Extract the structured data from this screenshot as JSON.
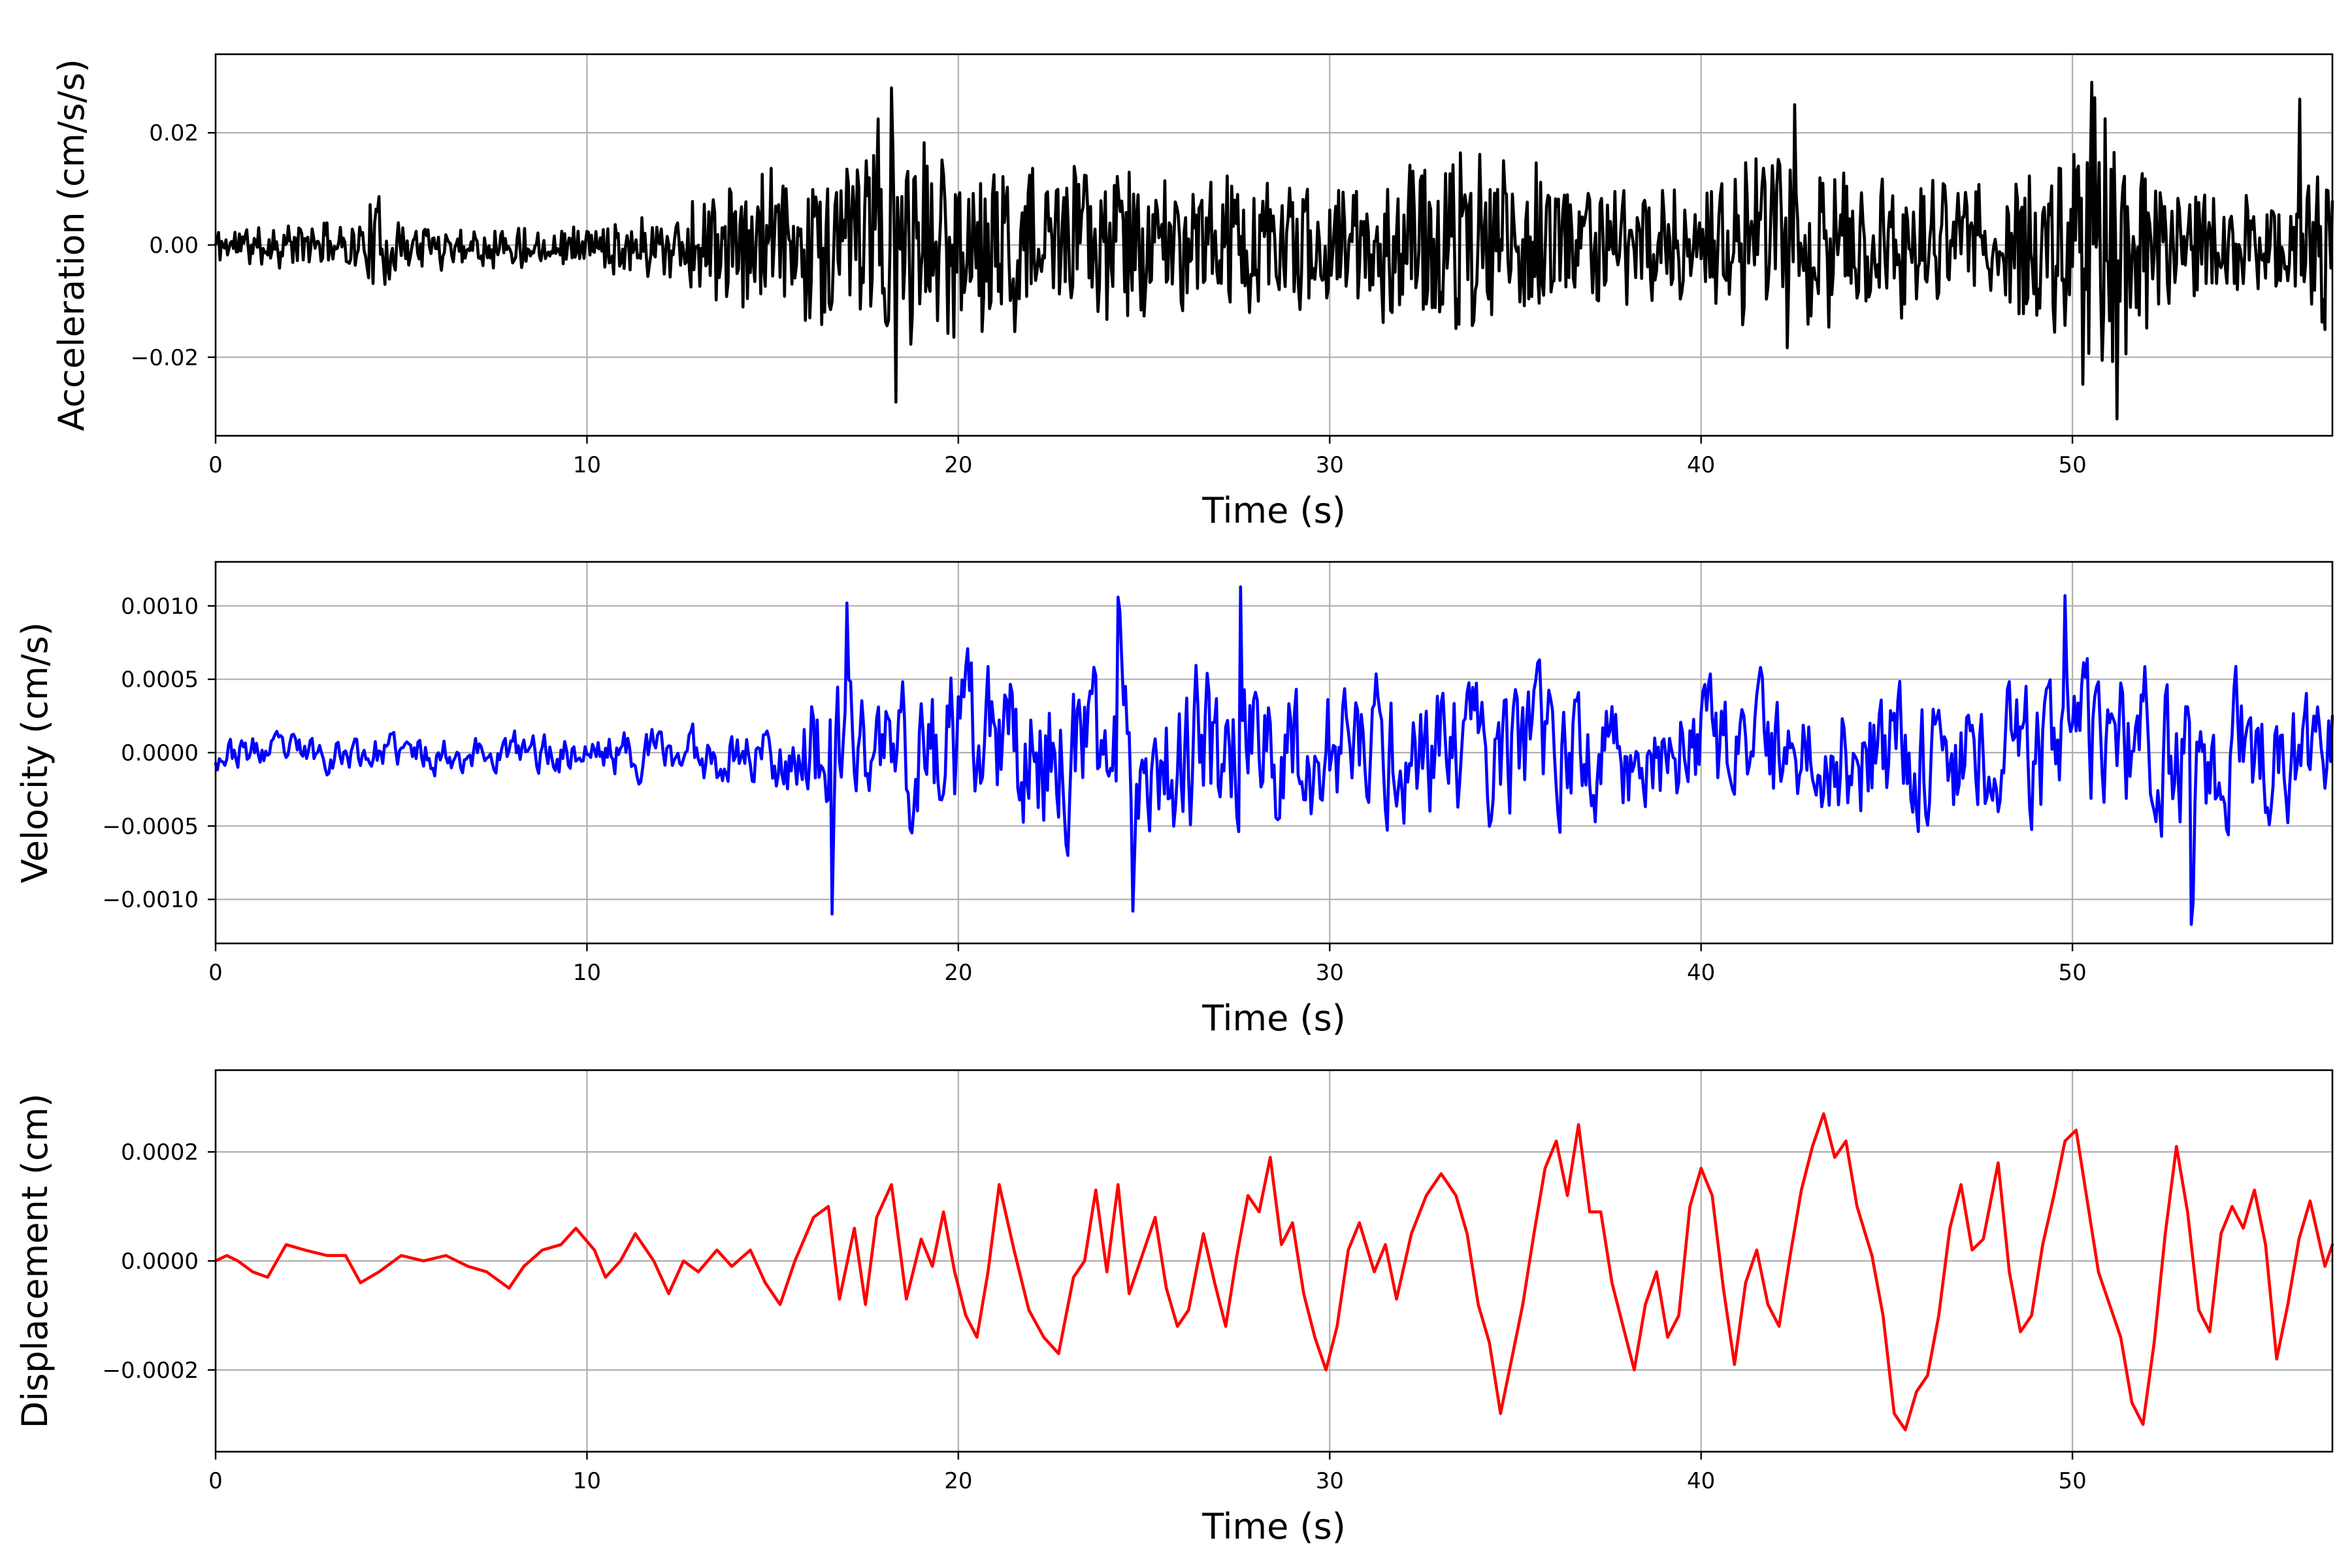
{
  "chart_data": [
    {
      "type": "line",
      "xlabel": "Time (s)",
      "ylabel": "Acceleration (cm/s/s)",
      "xlim": [
        0,
        57
      ],
      "ylim": [
        -0.034,
        0.034
      ],
      "xticks": [
        0,
        10,
        20,
        30,
        40,
        50
      ],
      "xtick_labels": [
        "0",
        "10",
        "20",
        "30",
        "40",
        "50"
      ],
      "yticks": [
        0.02,
        0.0,
        -0.02
      ],
      "ytick_labels": [
        "0.02",
        "0.00",
        "−0.02"
      ],
      "grid": true,
      "color": "#000000",
      "envelope": {
        "t": [
          0,
          4,
          4.3,
          5,
          10,
          12,
          15,
          17,
          18.2,
          20,
          23,
          26,
          30,
          33.8,
          36,
          40,
          41,
          42.5,
          44,
          48,
          49.5,
          50.5,
          51,
          52,
          54,
          56,
          57
        ],
        "amp": [
          0.004,
          0.005,
          0.011,
          0.005,
          0.004,
          0.008,
          0.015,
          0.018,
          0.028,
          0.018,
          0.016,
          0.014,
          0.012,
          0.02,
          0.014,
          0.01,
          0.016,
          0.024,
          0.016,
          0.012,
          0.02,
          0.03,
          0.03,
          0.016,
          0.01,
          0.012,
          0.02
        ]
      },
      "notable_peaks": [
        {
          "t": 18.2,
          "y": 0.028
        },
        {
          "t": 18.3,
          "y": -0.028
        },
        {
          "t": 42.5,
          "y": 0.025
        },
        {
          "t": 50.5,
          "y": 0.029
        },
        {
          "t": 51.2,
          "y": -0.031
        },
        {
          "t": 56.1,
          "y": 0.026
        }
      ]
    },
    {
      "type": "line",
      "xlabel": "Time (s)",
      "ylabel": "Velocity (cm/s)",
      "xlim": [
        0,
        57
      ],
      "ylim": [
        -0.0013,
        0.0013
      ],
      "xticks": [
        0,
        10,
        20,
        30,
        40,
        50
      ],
      "xtick_labels": [
        "0",
        "10",
        "20",
        "30",
        "40",
        "50"
      ],
      "yticks": [
        0.001,
        0.0005,
        0.0,
        -0.0005,
        -0.001
      ],
      "ytick_labels": [
        "0.0010",
        "0.0005",
        "0.0000",
        "−0.0005",
        "−0.0010"
      ],
      "grid": true,
      "color": "#0000ff",
      "envelope": {
        "t": [
          0,
          5,
          10,
          12,
          15,
          16.5,
          18,
          20,
          24,
          27.5,
          30,
          34,
          36,
          40,
          44,
          48,
          50,
          52,
          53,
          57
        ],
        "amp": [
          0.0002,
          0.00022,
          0.00025,
          0.0003,
          0.0004,
          0.0009,
          0.0009,
          0.00095,
          0.0009,
          0.001,
          0.0008,
          0.0008,
          0.0008,
          0.0007,
          0.0008,
          0.0008,
          0.0009,
          0.0009,
          0.0009,
          0.0007
        ]
      },
      "notable_peaks": [
        {
          "t": 16.6,
          "y": -0.0011
        },
        {
          "t": 17.0,
          "y": 0.00102
        },
        {
          "t": 24.3,
          "y": 0.00106
        },
        {
          "t": 24.7,
          "y": -0.00108
        },
        {
          "t": 27.6,
          "y": 0.00113
        },
        {
          "t": 49.8,
          "y": 0.00107
        },
        {
          "t": 53.2,
          "y": -0.00117
        }
      ]
    },
    {
      "type": "line",
      "xlabel": "Time (s)",
      "ylabel": "Displacement (cm)",
      "xlim": [
        0,
        57
      ],
      "ylim": [
        -0.00035,
        0.00035
      ],
      "xticks": [
        0,
        10,
        20,
        30,
        40,
        50
      ],
      "xtick_labels": [
        "0",
        "10",
        "20",
        "30",
        "40",
        "50"
      ],
      "yticks": [
        0.0002,
        0.0,
        -0.0002
      ],
      "ytick_labels": [
        "0.0002",
        "0.0000",
        "−0.0002"
      ],
      "grid": true,
      "color": "#ff0000",
      "points": [
        [
          0,
          0.0
        ],
        [
          0.3,
          1e-05
        ],
        [
          0.6,
          0.0
        ],
        [
          1.0,
          -2e-05
        ],
        [
          1.4,
          -3e-05
        ],
        [
          1.9,
          3e-05
        ],
        [
          2.4,
          2e-05
        ],
        [
          3.0,
          1e-05
        ],
        [
          3.5,
          1e-05
        ],
        [
          3.9,
          -4e-05
        ],
        [
          4.4,
          -2e-05
        ],
        [
          5.0,
          1e-05
        ],
        [
          5.6,
          0.0
        ],
        [
          6.2,
          1e-05
        ],
        [
          6.8,
          -1e-05
        ],
        [
          7.3,
          -2e-05
        ],
        [
          7.9,
          -5e-05
        ],
        [
          8.3,
          -1e-05
        ],
        [
          8.8,
          2e-05
        ],
        [
          9.3,
          3e-05
        ],
        [
          9.7,
          6e-05
        ],
        [
          10.2,
          2e-05
        ],
        [
          10.5,
          -3e-05
        ],
        [
          10.9,
          0.0
        ],
        [
          11.3,
          5e-05
        ],
        [
          11.8,
          0.0
        ],
        [
          12.2,
          -6e-05
        ],
        [
          12.6,
          0.0
        ],
        [
          13.0,
          -2e-05
        ],
        [
          13.5,
          2e-05
        ],
        [
          13.9,
          -1e-05
        ],
        [
          14.4,
          2e-05
        ],
        [
          14.8,
          -4e-05
        ],
        [
          15.2,
          -8e-05
        ],
        [
          15.6,
          0.0
        ],
        [
          16.1,
          8e-05
        ],
        [
          16.5,
          0.0001
        ],
        [
          16.8,
          -7e-05
        ],
        [
          17.2,
          6e-05
        ],
        [
          17.5,
          -8e-05
        ],
        [
          17.8,
          8e-05
        ],
        [
          18.2,
          0.00014
        ],
        [
          18.6,
          -7e-05
        ],
        [
          19.0,
          4e-05
        ],
        [
          19.3,
          -1e-05
        ],
        [
          19.6,
          9e-05
        ],
        [
          19.9,
          -2e-05
        ],
        [
          20.2,
          -0.0001
        ],
        [
          20.5,
          -0.00014
        ],
        [
          20.8,
          -2e-05
        ],
        [
          21.1,
          0.00014
        ],
        [
          21.5,
          2e-05
        ],
        [
          21.9,
          -9e-05
        ],
        [
          22.3,
          -0.00014
        ],
        [
          22.7,
          -0.00017
        ],
        [
          23.1,
          -3e-05
        ],
        [
          23.4,
          0.0
        ],
        [
          23.7,
          0.00013
        ],
        [
          24.0,
          -2e-05
        ],
        [
          24.3,
          0.00014
        ],
        [
          24.6,
          -6e-05
        ],
        [
          24.9,
          0.0
        ],
        [
          25.3,
          8e-05
        ],
        [
          25.6,
          -5e-05
        ],
        [
          25.9,
          -0.00012
        ],
        [
          26.2,
          -9e-05
        ],
        [
          26.6,
          5e-05
        ],
        [
          26.9,
          -4e-05
        ],
        [
          27.2,
          -0.00012
        ],
        [
          27.5,
          1e-05
        ],
        [
          27.8,
          0.00012
        ],
        [
          28.1,
          9e-05
        ],
        [
          28.4,
          0.00019
        ],
        [
          28.7,
          3e-05
        ],
        [
          29.0,
          7e-05
        ],
        [
          29.3,
          -6e-05
        ],
        [
          29.6,
          -0.00014
        ],
        [
          29.9,
          -0.0002
        ],
        [
          30.2,
          -0.00012
        ],
        [
          30.5,
          2e-05
        ],
        [
          30.8,
          7e-05
        ],
        [
          31.2,
          -2e-05
        ],
        [
          31.5,
          3e-05
        ],
        [
          31.8,
          -7e-05
        ],
        [
          32.2,
          5e-05
        ],
        [
          32.6,
          0.00012
        ],
        [
          33.0,
          0.00016
        ],
        [
          33.4,
          0.00012
        ],
        [
          33.7,
          5e-05
        ],
        [
          34.0,
          -8e-05
        ],
        [
          34.3,
          -0.00015
        ],
        [
          34.6,
          -0.00028
        ],
        [
          34.9,
          -0.00018
        ],
        [
          35.2,
          -8e-05
        ],
        [
          35.5,
          5e-05
        ],
        [
          35.8,
          0.00017
        ],
        [
          36.1,
          0.00022
        ],
        [
          36.4,
          0.00012
        ],
        [
          36.7,
          0.00025
        ],
        [
          37.0,
          9e-05
        ],
        [
          37.3,
          9e-05
        ],
        [
          37.6,
          -4e-05
        ],
        [
          37.9,
          -0.00012
        ],
        [
          38.2,
          -0.0002
        ],
        [
          38.5,
          -8e-05
        ],
        [
          38.8,
          -2e-05
        ],
        [
          39.1,
          -0.00014
        ],
        [
          39.4,
          -0.0001
        ],
        [
          39.7,
          0.0001
        ],
        [
          40.0,
          0.00017
        ],
        [
          40.3,
          0.00012
        ],
        [
          40.6,
          -5e-05
        ],
        [
          40.9,
          -0.00019
        ],
        [
          41.2,
          -4e-05
        ],
        [
          41.5,
          2e-05
        ],
        [
          41.8,
          -8e-05
        ],
        [
          42.1,
          -0.00012
        ],
        [
          42.4,
          1e-05
        ],
        [
          42.7,
          0.00013
        ],
        [
          43.0,
          0.00021
        ],
        [
          43.3,
          0.00027
        ],
        [
          43.6,
          0.00019
        ],
        [
          43.9,
          0.00022
        ],
        [
          44.2,
          0.0001
        ],
        [
          44.6,
          1e-05
        ],
        [
          44.9,
          -0.0001
        ],
        [
          45.2,
          -0.00028
        ],
        [
          45.5,
          -0.00031
        ],
        [
          45.8,
          -0.00024
        ],
        [
          46.1,
          -0.00021
        ],
        [
          46.4,
          -0.0001
        ],
        [
          46.7,
          6e-05
        ],
        [
          47.0,
          0.00014
        ],
        [
          47.3,
          2e-05
        ],
        [
          47.6,
          4e-05
        ],
        [
          48.0,
          0.00018
        ],
        [
          48.3,
          -2e-05
        ],
        [
          48.6,
          -0.00013
        ],
        [
          48.9,
          -0.0001
        ],
        [
          49.2,
          3e-05
        ],
        [
          49.5,
          0.00012
        ],
        [
          49.8,
          0.00022
        ],
        [
          50.1,
          0.00024
        ],
        [
          50.4,
          0.00011
        ],
        [
          50.7,
          -2e-05
        ],
        [
          51.0,
          -8e-05
        ],
        [
          51.3,
          -0.00014
        ],
        [
          51.6,
          -0.00026
        ],
        [
          51.9,
          -0.0003
        ],
        [
          52.2,
          -0.00015
        ],
        [
          52.5,
          5e-05
        ],
        [
          52.8,
          0.00021
        ],
        [
          53.1,
          9e-05
        ],
        [
          53.4,
          -9e-05
        ],
        [
          53.7,
          -0.00013
        ],
        [
          54.0,
          5e-05
        ],
        [
          54.3,
          0.0001
        ],
        [
          54.6,
          6e-05
        ],
        [
          54.9,
          0.00013
        ],
        [
          55.2,
          3e-05
        ],
        [
          55.5,
          -0.00018
        ],
        [
          55.8,
          -8e-05
        ],
        [
          56.1,
          4e-05
        ],
        [
          56.4,
          0.00011
        ],
        [
          56.8,
          -1e-05
        ],
        [
          57.0,
          3e-05
        ]
      ]
    }
  ]
}
